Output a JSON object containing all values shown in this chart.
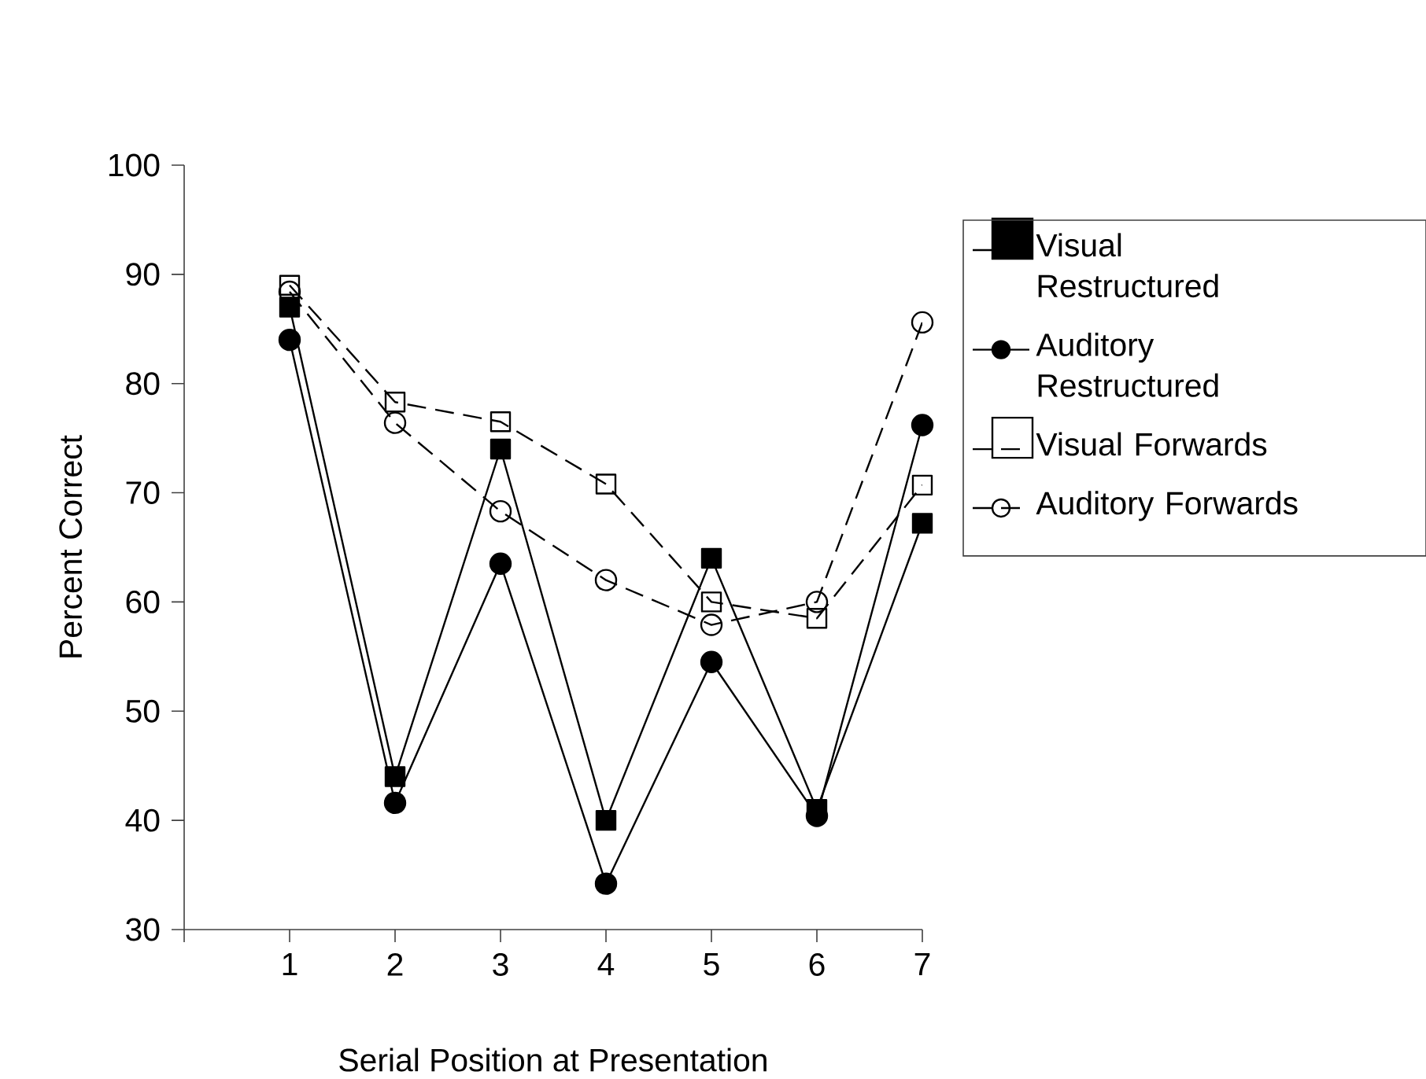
{
  "chart_data": {
    "type": "line",
    "xlabel": "Serial Position at Presentation",
    "ylabel": "Percent Correct",
    "x": [
      1,
      2,
      3,
      4,
      5,
      6,
      7
    ],
    "xlim": [
      0,
      7
    ],
    "xticks": [
      1,
      2,
      3,
      4,
      5,
      6,
      7
    ],
    "ylim": [
      30,
      100
    ],
    "yticks": [
      30,
      40,
      50,
      60,
      70,
      80,
      90,
      100
    ],
    "legend": "right",
    "grid": false,
    "series": [
      {
        "name": "Visual Restructured",
        "color": "#000000",
        "marker": "square",
        "line_style": "solid",
        "values": [
          87,
          44,
          74,
          40,
          64,
          41,
          67.2
        ]
      },
      {
        "name": "Auditory Restructured",
        "color": "#000000",
        "marker": "circle",
        "line_style": "solid",
        "values": [
          84,
          41.6,
          63.5,
          34.2,
          54.5,
          40.4,
          76.2
        ]
      },
      {
        "name": "Visual Forwards",
        "color": "#000000",
        "marker": "square",
        "line_style": "dashed",
        "values": [
          89,
          78.3,
          76.5,
          70.8,
          60,
          58.5,
          70.7
        ]
      },
      {
        "name": "Auditory Forwards",
        "color": "#000000",
        "marker": "circle",
        "line_style": "dashed",
        "values": [
          88.4,
          76.4,
          68.3,
          62,
          57.9,
          60,
          85.6
        ]
      }
    ]
  }
}
